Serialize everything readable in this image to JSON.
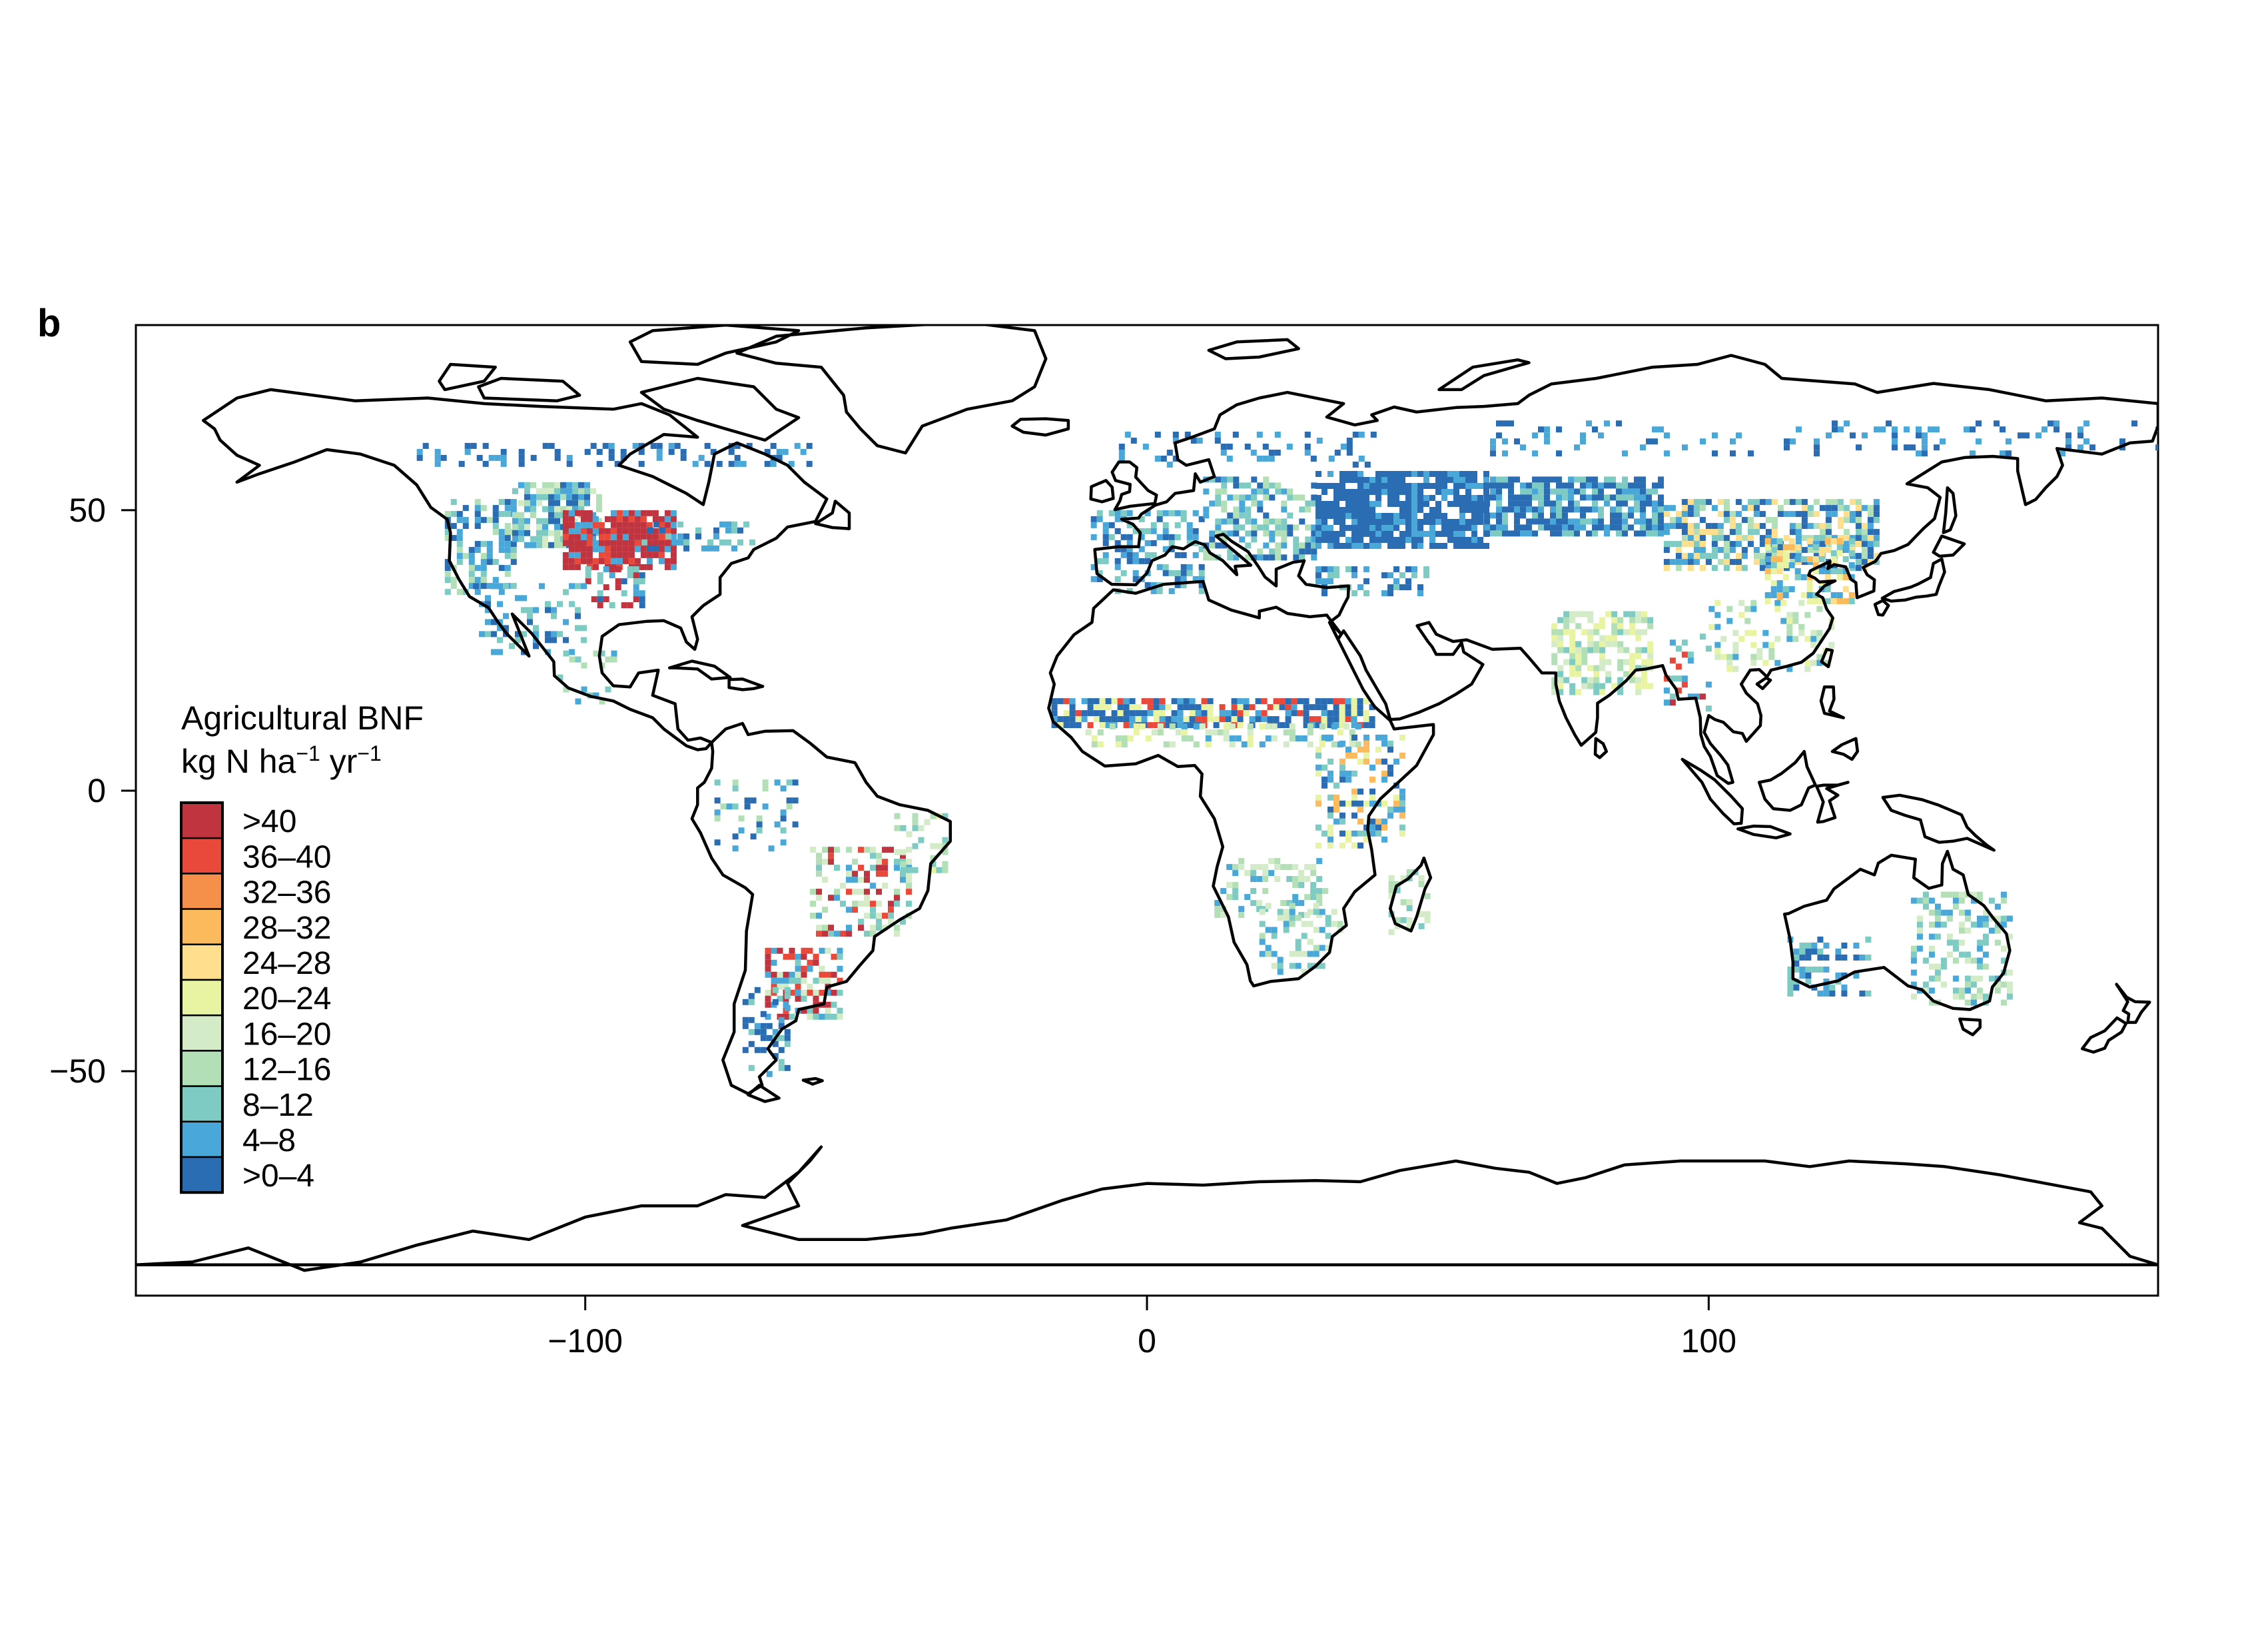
{
  "panel_label": "b",
  "legend": {
    "title_line1": "Agricultural BNF",
    "unit": "kg N ha",
    "unit_exp1": "−1",
    "unit_mid": " yr",
    "unit_exp2": "−1",
    "classes": [
      {
        "label": ">40",
        "color": "#c0343f"
      },
      {
        "label": "36–40",
        "color": "#e8493a"
      },
      {
        "label": "32–36",
        "color": "#f5904a"
      },
      {
        "label": "28–32",
        "color": "#fbba5c"
      },
      {
        "label": "24–28",
        "color": "#fddf8e"
      },
      {
        "label": "20–24",
        "color": "#e9f4a2"
      },
      {
        "label": "16–20",
        "color": "#d3ebc6"
      },
      {
        "label": "12–16",
        "color": "#b2dfb6"
      },
      {
        "label": "8–12",
        "color": "#7dcbc2"
      },
      {
        "label": "4–8",
        "color": "#4aa8d8"
      },
      {
        "label": ">0–4",
        "color": "#2a6db3"
      }
    ]
  },
  "chart_data": {
    "type": "heatmap",
    "projection": "equirectangular",
    "xlim": [
      -180,
      180
    ],
    "ylim": [
      -90,
      83
    ],
    "x_ticks": [
      -100,
      0,
      100
    ],
    "x_tick_labels": [
      "−100",
      "0",
      "100"
    ],
    "y_ticks": [
      50,
      0,
      -50
    ],
    "y_tick_labels": [
      "50",
      "0",
      "−50"
    ],
    "grid": false,
    "legend_position": "left"
  }
}
